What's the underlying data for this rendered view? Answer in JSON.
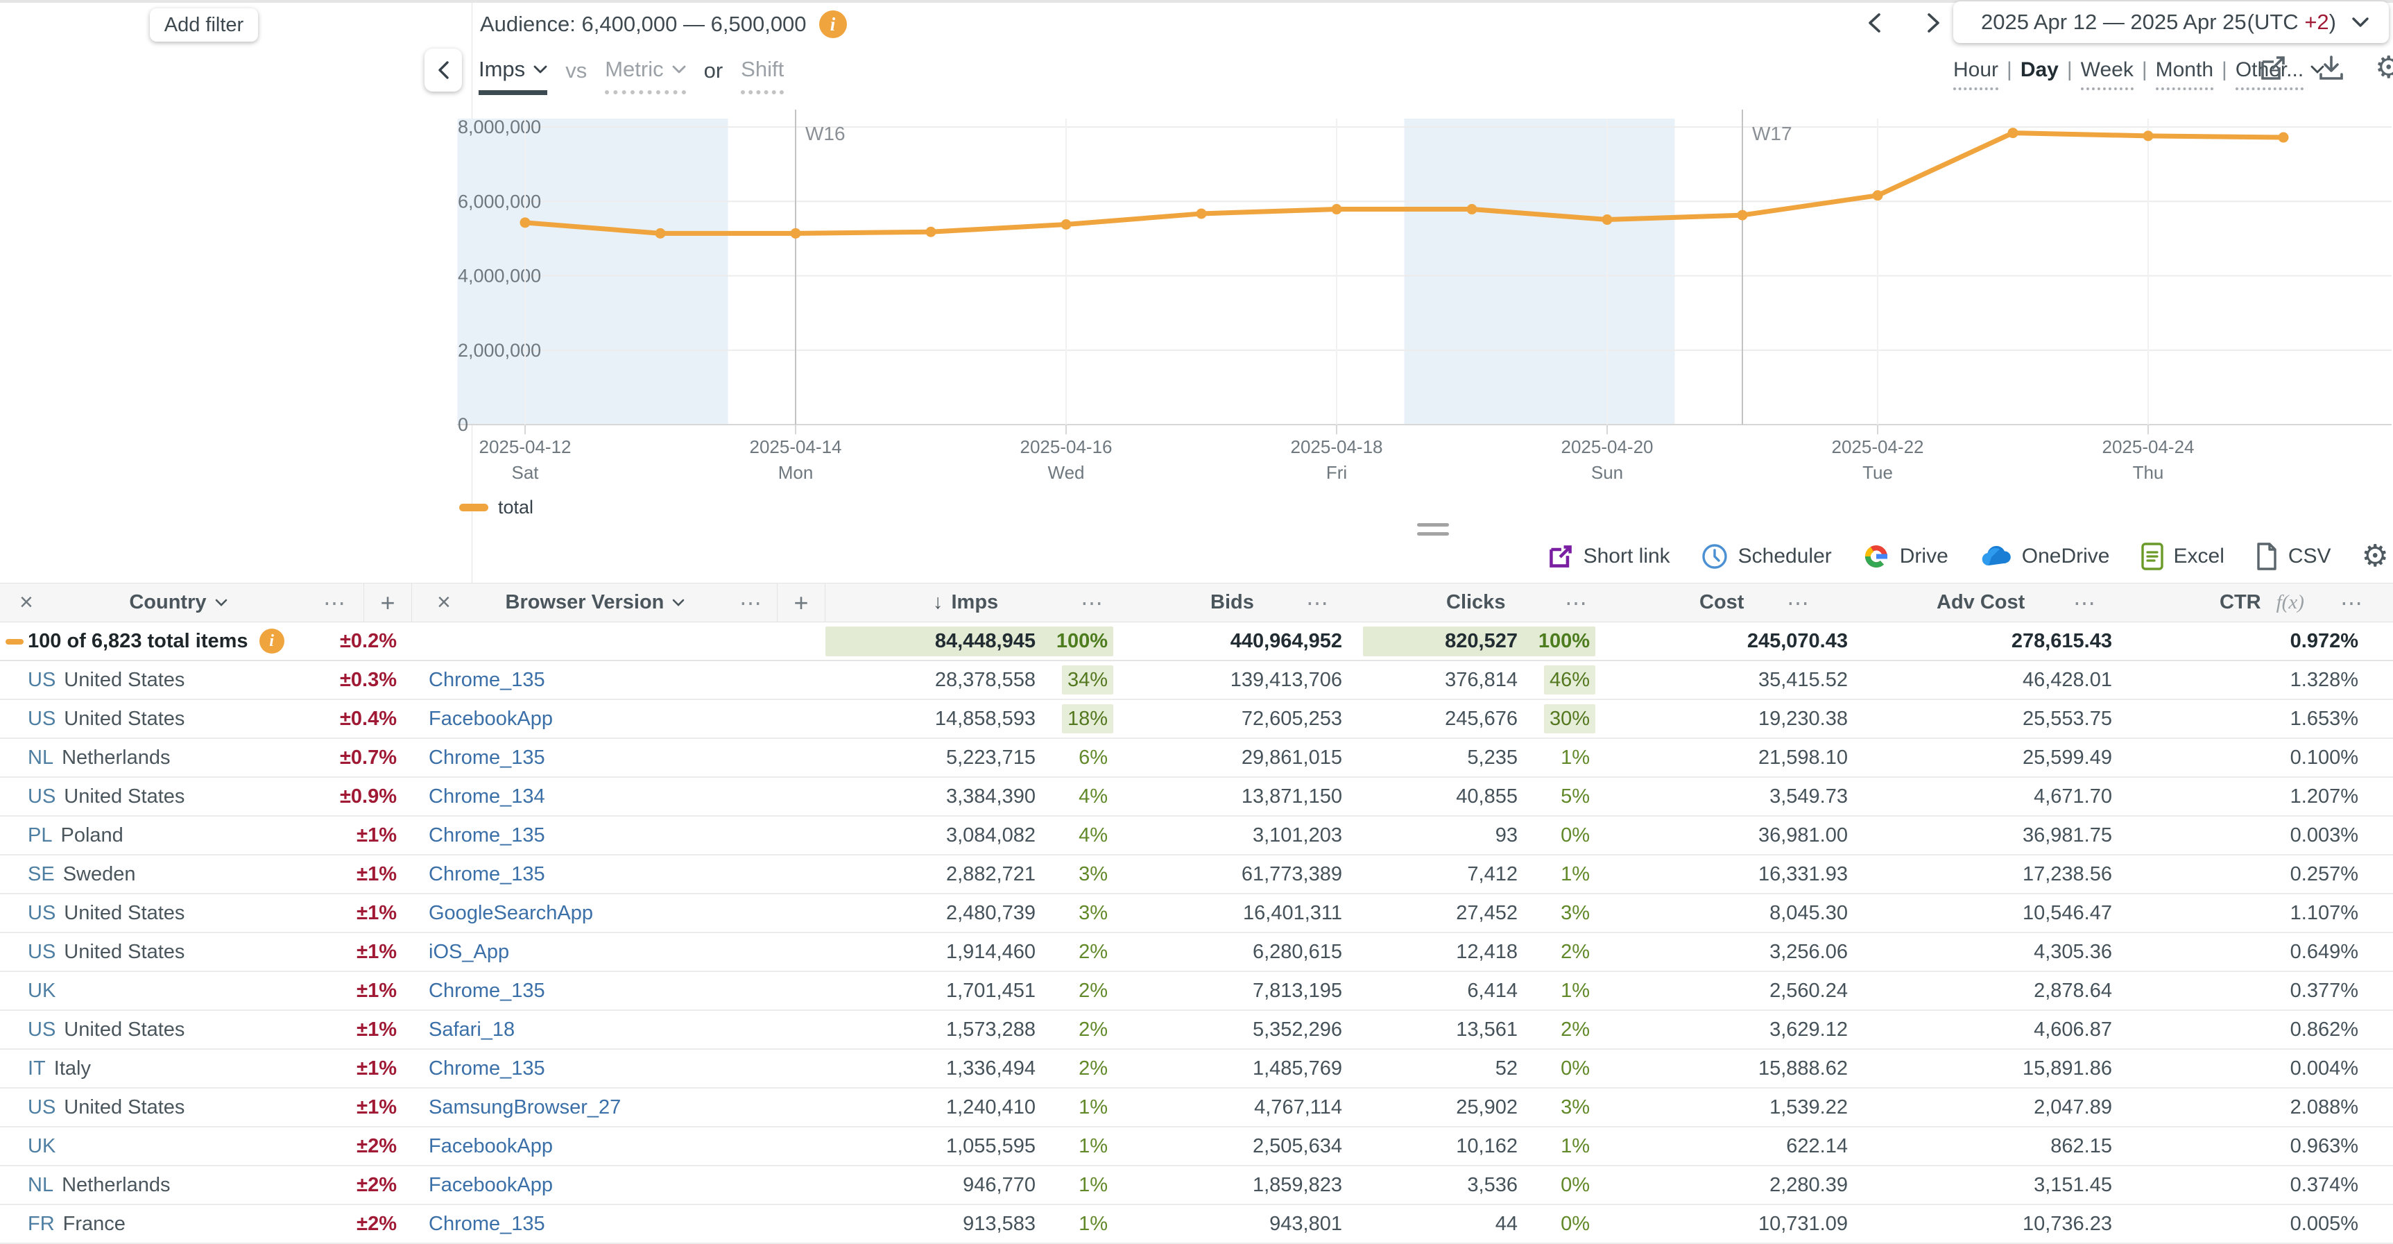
{
  "filter_panel": {
    "add_filter_label": "Add filter"
  },
  "header": {
    "audience_label": "Audience: 6,400,000 — 6,500,000",
    "date_range": "2025 Apr 12 — 2025 Apr 25",
    "utc_prefix": "(UTC ",
    "utc_offset": "+2",
    "utc_suffix": ")",
    "granularity": [
      {
        "label": "Hour",
        "active": false
      },
      {
        "label": "Day",
        "active": true
      },
      {
        "label": "Week",
        "active": false
      },
      {
        "label": "Month",
        "active": false
      },
      {
        "label": "Other...",
        "active": false
      }
    ]
  },
  "metric_bar": {
    "primary_metric": "Imps",
    "vs_label": "vs",
    "metric_placeholder": "Metric",
    "or_label": "or",
    "shift_label": "Shift"
  },
  "chart_data": {
    "type": "line",
    "x": [
      "2025-04-12",
      "2025-04-13",
      "2025-04-14",
      "2025-04-15",
      "2025-04-16",
      "2025-04-17",
      "2025-04-18",
      "2025-04-19",
      "2025-04-20",
      "2025-04-21",
      "2025-04-22",
      "2025-04-23",
      "2025-04-24",
      "2025-04-25"
    ],
    "x_dow": [
      "Sat",
      "Sun",
      "Mon",
      "Tue",
      "Wed",
      "Thu",
      "Fri",
      "Sat",
      "Sun",
      "Mon",
      "Tue",
      "Wed",
      "Thu",
      "Fri"
    ],
    "label_every": 2,
    "series": [
      {
        "name": "total",
        "color": "#f0a43e",
        "values": [
          5430000,
          5140000,
          5140000,
          5180000,
          5380000,
          5670000,
          5790000,
          5790000,
          5510000,
          5630000,
          6160000,
          7840000,
          7760000,
          7720000
        ]
      }
    ],
    "ylim": [
      0,
      8000000
    ],
    "y_ticks": [
      0,
      2000000,
      4000000,
      6000000,
      8000000
    ],
    "week_markers": [
      {
        "label": "W16",
        "at": "2025-04-14"
      },
      {
        "label": "W17",
        "at": "2025-04-21"
      }
    ],
    "weekend_bands": [
      [
        "2025-04-12",
        "2025-04-13"
      ],
      [
        "2025-04-19",
        "2025-04-20"
      ]
    ],
    "legend_position": "bottom-left",
    "grid": true
  },
  "export_bar": {
    "short_link": "Short link",
    "scheduler": "Scheduler",
    "drive": "Drive",
    "onedrive": "OneDrive",
    "excel": "Excel",
    "csv": "CSV"
  },
  "icons": {
    "menu": "⋯",
    "close": "×",
    "add": "+",
    "sort_desc": "↓",
    "gear": "⚙"
  },
  "table": {
    "headers": {
      "country": "Country",
      "browser": "Browser Version",
      "imps": "Imps",
      "bids": "Bids",
      "clicks": "Clicks",
      "cost": "Cost",
      "adv_cost": "Adv Cost",
      "ctr": "CTR",
      "fx": "f(x)"
    },
    "totals": {
      "label": "100 of 6,823 total items",
      "error": "±0.2%",
      "imps": "84,448,945",
      "imps_pct": "100%",
      "bids": "440,964,952",
      "clicks": "820,527",
      "clicks_pct": "100%",
      "cost": "245,070.43",
      "adv_cost": "278,615.43",
      "ctr": "0.972%"
    },
    "rows": [
      {
        "country_code": "US",
        "country": "United States",
        "error": "±0.3%",
        "browser": "Chrome_135",
        "imps": "28,378,558",
        "imps_pct": "34%",
        "imps_hl": true,
        "bids": "139,413,706",
        "clicks": "376,814",
        "clicks_pct": "46%",
        "clicks_hl": true,
        "cost": "35,415.52",
        "adv_cost": "46,428.01",
        "ctr": "1.328%"
      },
      {
        "country_code": "US",
        "country": "United States",
        "error": "±0.4%",
        "browser": "FacebookApp",
        "imps": "14,858,593",
        "imps_pct": "18%",
        "imps_hl": true,
        "bids": "72,605,253",
        "clicks": "245,676",
        "clicks_pct": "30%",
        "clicks_hl": true,
        "cost": "19,230.38",
        "adv_cost": "25,553.75",
        "ctr": "1.653%"
      },
      {
        "country_code": "NL",
        "country": "Netherlands",
        "error": "±0.7%",
        "browser": "Chrome_135",
        "imps": "5,223,715",
        "imps_pct": "6%",
        "imps_hl": false,
        "bids": "29,861,015",
        "clicks": "5,235",
        "clicks_pct": "1%",
        "clicks_hl": false,
        "cost": "21,598.10",
        "adv_cost": "25,599.49",
        "ctr": "0.100%"
      },
      {
        "country_code": "US",
        "country": "United States",
        "error": "±0.9%",
        "browser": "Chrome_134",
        "imps": "3,384,390",
        "imps_pct": "4%",
        "imps_hl": false,
        "bids": "13,871,150",
        "clicks": "40,855",
        "clicks_pct": "5%",
        "clicks_hl": false,
        "cost": "3,549.73",
        "adv_cost": "4,671.70",
        "ctr": "1.207%"
      },
      {
        "country_code": "PL",
        "country": "Poland",
        "error": "±1%",
        "browser": "Chrome_135",
        "imps": "3,084,082",
        "imps_pct": "4%",
        "imps_hl": false,
        "bids": "3,101,203",
        "clicks": "93",
        "clicks_pct": "0%",
        "clicks_hl": false,
        "cost": "36,981.00",
        "adv_cost": "36,981.75",
        "ctr": "0.003%"
      },
      {
        "country_code": "SE",
        "country": "Sweden",
        "error": "±1%",
        "browser": "Chrome_135",
        "imps": "2,882,721",
        "imps_pct": "3%",
        "imps_hl": false,
        "bids": "61,773,389",
        "clicks": "7,412",
        "clicks_pct": "1%",
        "clicks_hl": false,
        "cost": "16,331.93",
        "adv_cost": "17,238.56",
        "ctr": "0.257%"
      },
      {
        "country_code": "US",
        "country": "United States",
        "error": "±1%",
        "browser": "GoogleSearchApp",
        "imps": "2,480,739",
        "imps_pct": "3%",
        "imps_hl": false,
        "bids": "16,401,311",
        "clicks": "27,452",
        "clicks_pct": "3%",
        "clicks_hl": false,
        "cost": "8,045.30",
        "adv_cost": "10,546.47",
        "ctr": "1.107%"
      },
      {
        "country_code": "US",
        "country": "United States",
        "error": "±1%",
        "browser": "iOS_App",
        "imps": "1,914,460",
        "imps_pct": "2%",
        "imps_hl": false,
        "bids": "6,280,615",
        "clicks": "12,418",
        "clicks_pct": "2%",
        "clicks_hl": false,
        "cost": "3,256.06",
        "adv_cost": "4,305.36",
        "ctr": "0.649%"
      },
      {
        "country_code": "UK",
        "country": "",
        "error": "±1%",
        "browser": "Chrome_135",
        "imps": "1,701,451",
        "imps_pct": "2%",
        "imps_hl": false,
        "bids": "7,813,195",
        "clicks": "6,414",
        "clicks_pct": "1%",
        "clicks_hl": false,
        "cost": "2,560.24",
        "adv_cost": "2,878.64",
        "ctr": "0.377%"
      },
      {
        "country_code": "US",
        "country": "United States",
        "error": "±1%",
        "browser": "Safari_18",
        "imps": "1,573,288",
        "imps_pct": "2%",
        "imps_hl": false,
        "bids": "5,352,296",
        "clicks": "13,561",
        "clicks_pct": "2%",
        "clicks_hl": false,
        "cost": "3,629.12",
        "adv_cost": "4,606.87",
        "ctr": "0.862%"
      },
      {
        "country_code": "IT",
        "country": "Italy",
        "error": "±1%",
        "browser": "Chrome_135",
        "imps": "1,336,494",
        "imps_pct": "2%",
        "imps_hl": false,
        "bids": "1,485,769",
        "clicks": "52",
        "clicks_pct": "0%",
        "clicks_hl": false,
        "cost": "15,888.62",
        "adv_cost": "15,891.86",
        "ctr": "0.004%"
      },
      {
        "country_code": "US",
        "country": "United States",
        "error": "±1%",
        "browser": "SamsungBrowser_27",
        "imps": "1,240,410",
        "imps_pct": "1%",
        "imps_hl": false,
        "bids": "4,767,114",
        "clicks": "25,902",
        "clicks_pct": "3%",
        "clicks_hl": false,
        "cost": "1,539.22",
        "adv_cost": "2,047.89",
        "ctr": "2.088%"
      },
      {
        "country_code": "UK",
        "country": "",
        "error": "±2%",
        "browser": "FacebookApp",
        "imps": "1,055,595",
        "imps_pct": "1%",
        "imps_hl": false,
        "bids": "2,505,634",
        "clicks": "10,162",
        "clicks_pct": "1%",
        "clicks_hl": false,
        "cost": "622.14",
        "adv_cost": "862.15",
        "ctr": "0.963%"
      },
      {
        "country_code": "NL",
        "country": "Netherlands",
        "error": "±2%",
        "browser": "FacebookApp",
        "imps": "946,770",
        "imps_pct": "1%",
        "imps_hl": false,
        "bids": "1,859,823",
        "clicks": "3,536",
        "clicks_pct": "0%",
        "clicks_hl": false,
        "cost": "2,280.39",
        "adv_cost": "3,151.45",
        "ctr": "0.374%"
      },
      {
        "country_code": "FR",
        "country": "France",
        "error": "±2%",
        "browser": "Chrome_135",
        "imps": "913,583",
        "imps_pct": "1%",
        "imps_hl": false,
        "bids": "943,801",
        "clicks": "44",
        "clicks_pct": "0%",
        "clicks_hl": false,
        "cost": "10,731.09",
        "adv_cost": "10,736.23",
        "ctr": "0.005%"
      }
    ]
  }
}
